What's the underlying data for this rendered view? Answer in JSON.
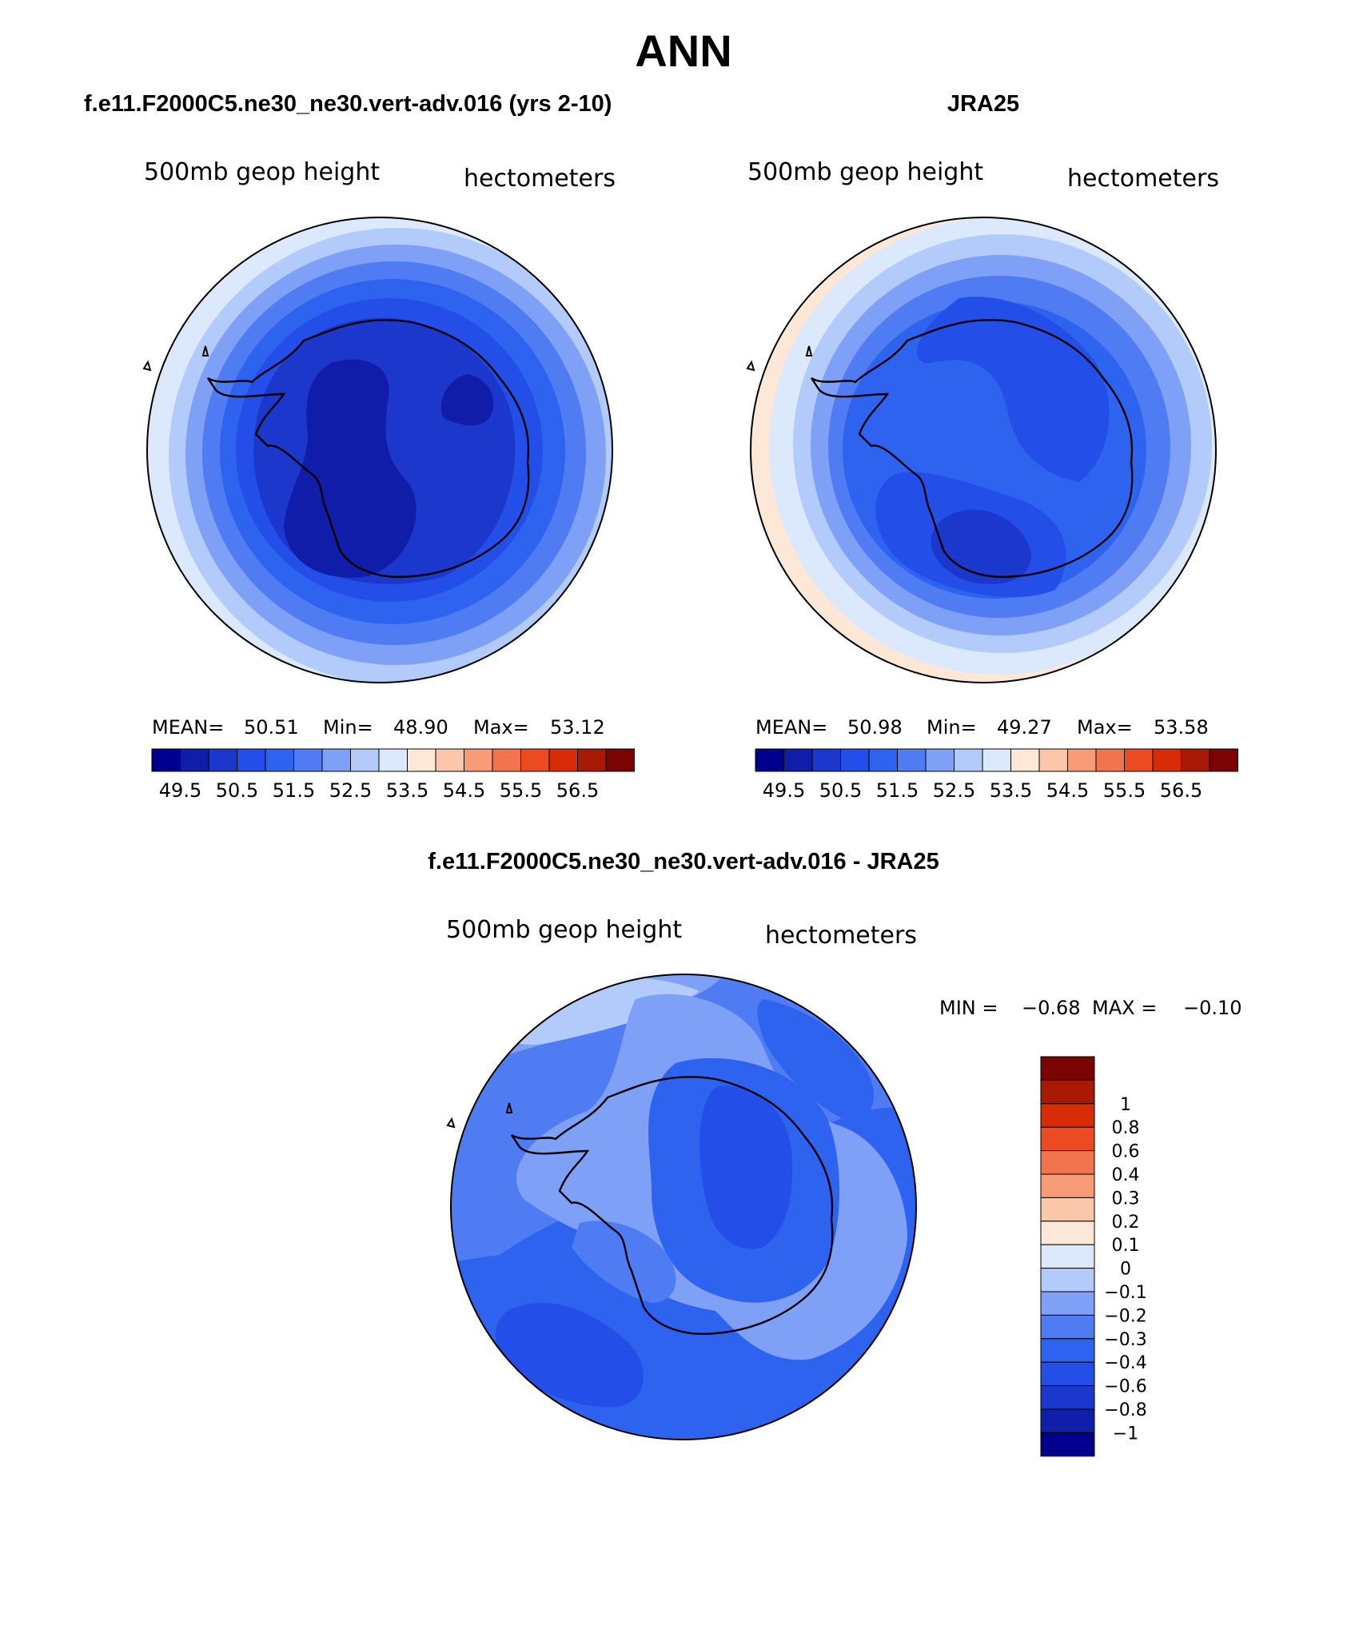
{
  "title": "ANN",
  "colors": {
    "c49": "#00008f",
    "c495": "#0f1da8",
    "c50": "#1c37cc",
    "c505": "#234ee8",
    "c51": "#2e63f0",
    "c515": "#4f7cf2",
    "c52": "#7fa0f7",
    "c525": "#b2cbfb",
    "c53": "#dce9fc",
    "c535": "#fde8d8",
    "ocean": "#ffffff",
    "coast": "#000000"
  },
  "panels": [
    {
      "title": "f.e11.F2000C5.ne30_ne30.vert-adv.016 (yrs 2-10)",
      "variable": "500mb geop height",
      "units": "hectometers",
      "stats": {
        "mean_label": "MEAN=",
        "mean": "50.51",
        "min_label": "Min=",
        "min": "48.90",
        "max_label": "Max=",
        "max": "53.12"
      }
    },
    {
      "title": "JRA25",
      "variable": "500mb geop height",
      "units": "hectometers",
      "stats": {
        "mean_label": "MEAN=",
        "mean": "50.98",
        "min_label": "Min=",
        "min": "49.27",
        "max_label": "Max=",
        "max": "53.58"
      }
    },
    {
      "title": "f.e11.F2000C5.ne30_ne30.vert-adv.016 - JRA25",
      "variable": "500mb geop height",
      "units": "hectometers",
      "stats": {
        "min_label": "MIN =",
        "min": "−0.68",
        "max_label": "MAX =",
        "max": "−0.10"
      }
    }
  ],
  "colorbar_abs": {
    "colors": [
      "#00008f",
      "#0f1da8",
      "#1c37cc",
      "#234ee8",
      "#2e63f0",
      "#4f7cf2",
      "#7fa0f7",
      "#b2cbfb",
      "#dce9fc",
      "#fde8d8",
      "#fbc6a9",
      "#f79c76",
      "#f2744e",
      "#ec4a21",
      "#d82c08",
      "#a91a05",
      "#7a0403"
    ],
    "labels": [
      "49.5",
      "50.5",
      "51.5",
      "52.5",
      "53.5",
      "54.5",
      "55.5",
      "56.5"
    ]
  },
  "colorbar_diff": {
    "colors": [
      "#7a0403",
      "#a91a05",
      "#d82c08",
      "#ec4a21",
      "#f2744e",
      "#f79c76",
      "#fbc6a9",
      "#fde8d8",
      "#dce9fc",
      "#b2cbfb",
      "#7fa0f7",
      "#4f7cf2",
      "#2e63f0",
      "#234ee8",
      "#1c37cc",
      "#0f1da8",
      "#00008f"
    ],
    "labels": [
      "1",
      "0.8",
      "0.6",
      "0.4",
      "0.3",
      "0.2",
      "0.1",
      "0",
      "−0.1",
      "−0.2",
      "−0.3",
      "−0.4",
      "−0.6",
      "−0.8",
      "−1"
    ]
  },
  "diff_colors": {
    "d01": "#b2cbfb",
    "d02": "#7fa0f7",
    "d03": "#4f7cf2",
    "d04": "#2e63f0",
    "d06": "#234ee8"
  }
}
